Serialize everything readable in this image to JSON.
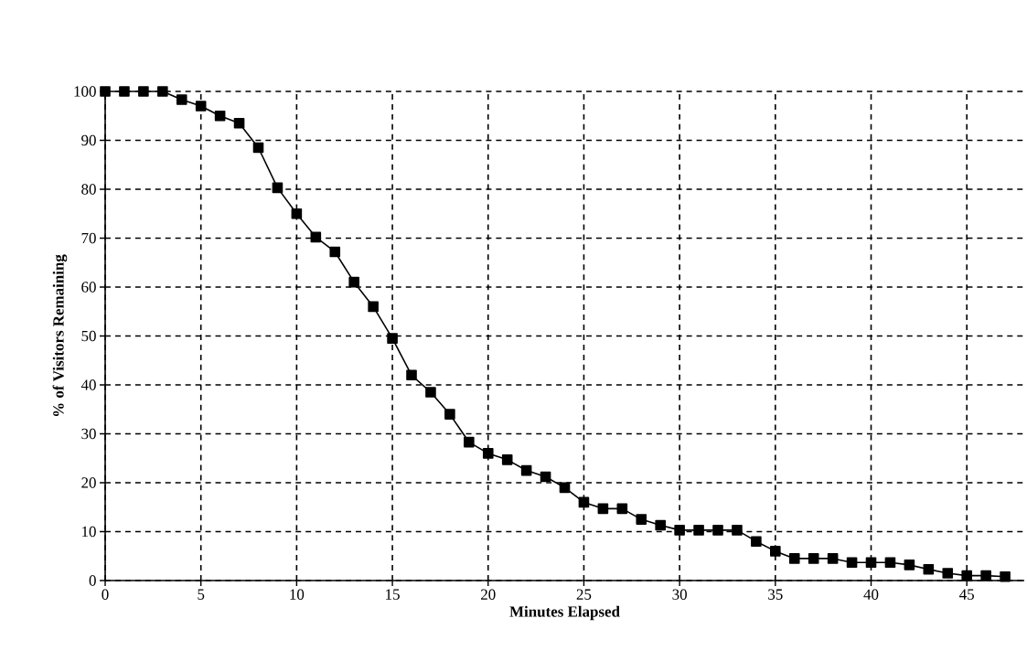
{
  "chart_data": {
    "type": "line",
    "xlabel": "Minutes Elapsed",
    "ylabel": "% of Visitors Remaining",
    "x": [
      0,
      1,
      2,
      3,
      4,
      5,
      6,
      7,
      8,
      9,
      10,
      11,
      12,
      13,
      14,
      15,
      16,
      17,
      18,
      19,
      20,
      21,
      22,
      23,
      24,
      25,
      26,
      27,
      28,
      29,
      30,
      31,
      32,
      33,
      34,
      35,
      36,
      37,
      38,
      39,
      40,
      41,
      42,
      43,
      44,
      45,
      46,
      47
    ],
    "values": [
      100,
      100,
      100,
      100,
      98.3,
      97,
      95,
      93.5,
      88.5,
      80.3,
      75,
      70.2,
      67.2,
      61,
      56,
      49.5,
      42,
      38.5,
      34,
      28.3,
      26,
      24.7,
      22.5,
      21.2,
      19,
      16,
      14.7,
      14.7,
      12.5,
      11.3,
      10.3,
      10.3,
      10.3,
      10.3,
      8,
      6,
      4.5,
      4.5,
      4.5,
      3.7,
      3.7,
      3.7,
      3.2,
      2.3,
      1.5,
      1,
      1,
      0.8
    ],
    "color": "#000000",
    "marker": "square",
    "line_style": "solid",
    "grid": true,
    "xlim": [
      0,
      48
    ],
    "ylim": [
      0,
      100
    ],
    "xticks": [
      0,
      5,
      10,
      15,
      20,
      25,
      30,
      35,
      40,
      45
    ],
    "yticks": [
      0,
      10,
      20,
      30,
      40,
      50,
      60,
      70,
      80,
      90,
      100
    ]
  }
}
